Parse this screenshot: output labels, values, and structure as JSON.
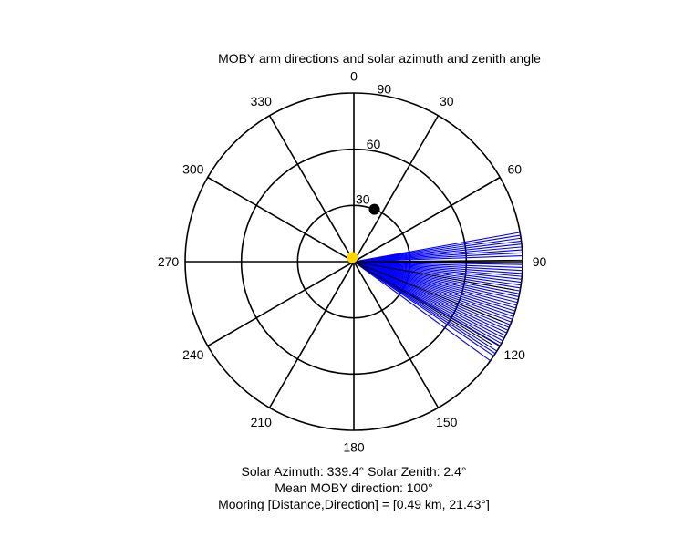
{
  "chart_data": {
    "type": "polar",
    "title": "MOBY arm directions and solar azimuth and zenith angle",
    "angle_tick_labels": [
      "0",
      "30",
      "60",
      "90",
      "120",
      "150",
      "180",
      "210",
      "240",
      "270",
      "300",
      "330"
    ],
    "angle_tick_values": [
      0,
      30,
      60,
      90,
      120,
      150,
      180,
      210,
      240,
      270,
      300,
      330
    ],
    "angle_direction": "clockwise from top",
    "radial_tick_labels": [
      "30",
      "60",
      "90"
    ],
    "radial_tick_values": [
      30,
      60,
      90
    ],
    "radial_range": [
      0,
      90
    ],
    "grid": true,
    "series": [
      {
        "marker": "line",
        "color": "#0000ff",
        "angles": [
          80,
          81,
          82,
          83,
          84,
          85,
          86,
          87,
          88,
          90,
          91,
          92,
          93,
          94,
          95,
          96,
          97,
          98,
          99,
          100,
          101,
          102,
          103,
          104,
          105,
          106,
          107,
          108,
          109,
          110,
          111,
          112,
          113,
          114,
          115,
          116,
          117,
          118,
          119,
          120,
          122,
          123,
          124,
          126
        ],
        "radius": 90
      },
      {
        "marker": "line",
        "color": "#000000",
        "angles": [
          89.5,
          90,
          90.5,
          100,
          112,
          121
        ],
        "radii": [
          90,
          90,
          90,
          87,
          86,
          86
        ]
      },
      {
        "marker": "point",
        "color": "#000000",
        "angle": 21.43,
        "radius": 30
      },
      {
        "marker": "point",
        "color": "#ffd700",
        "angle": 339.4,
        "radius": 2.4
      }
    ]
  },
  "captions": {
    "line1": "Solar Azimuth: 339.4°   Solar Zenith: 2.4°",
    "line2": "Mean MOBY direction: 100°",
    "line3": "Mooring [Distance,Direction] = [0.49 km, 21.43°]"
  }
}
